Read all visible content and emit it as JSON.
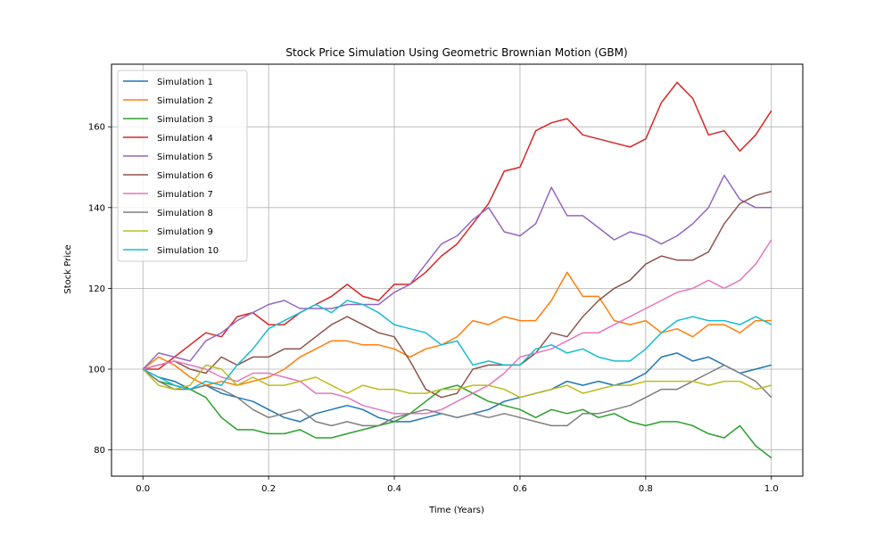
{
  "chart_data": {
    "type": "line",
    "title": "Stock Price Simulation Using Geometric Brownian Motion (GBM)",
    "xlabel": "Time (Years)",
    "ylabel": "Stock Price",
    "xlim": [
      -0.05,
      1.05
    ],
    "ylim": [
      73.5,
      175.5
    ],
    "xticks": [
      0.0,
      0.2,
      0.4,
      0.6,
      0.8,
      1.0
    ],
    "xtick_labels": [
      "0.0",
      "0.2",
      "0.4",
      "0.6",
      "0.8",
      "1.0"
    ],
    "yticks": [
      80,
      100,
      120,
      140,
      160
    ],
    "ytick_labels": [
      "80",
      "100",
      "120",
      "140",
      "160"
    ],
    "grid": true,
    "legend_position": "upper-left",
    "x": [
      0.0,
      0.025,
      0.05,
      0.075,
      0.1,
      0.125,
      0.15,
      0.175,
      0.2,
      0.225,
      0.25,
      0.275,
      0.3,
      0.325,
      0.35,
      0.375,
      0.4,
      0.425,
      0.45,
      0.475,
      0.5,
      0.525,
      0.55,
      0.575,
      0.6,
      0.625,
      0.65,
      0.675,
      0.7,
      0.725,
      0.75,
      0.775,
      0.8,
      0.825,
      0.85,
      0.875,
      0.9,
      0.925,
      0.95,
      0.975,
      1.0
    ],
    "series": [
      {
        "name": "Simulation 1",
        "color": "#1f77b4",
        "values": [
          100,
          98,
          97,
          95,
          96,
          94,
          93,
          92,
          90,
          88,
          87,
          89,
          90,
          91,
          90,
          88,
          87,
          87,
          88,
          89,
          88,
          89,
          90,
          92,
          93,
          94,
          95,
          97,
          96,
          97,
          96,
          97,
          99,
          103,
          104,
          102,
          103,
          101,
          99,
          100,
          101
        ]
      },
      {
        "name": "Simulation 2",
        "color": "#ff7f0e",
        "values": [
          100,
          103,
          101,
          98,
          96,
          97,
          96,
          97,
          98,
          100,
          103,
          105,
          107,
          107,
          106,
          106,
          105,
          103,
          105,
          106,
          108,
          112,
          111,
          113,
          112,
          112,
          117,
          124,
          118,
          118,
          112,
          111,
          112,
          109,
          110,
          108,
          111,
          111,
          109,
          112,
          112
        ]
      },
      {
        "name": "Simulation 3",
        "color": "#2ca02c",
        "values": [
          100,
          97,
          96,
          95,
          93,
          88,
          85,
          85,
          84,
          84,
          85,
          83,
          83,
          84,
          85,
          86,
          87,
          89,
          92,
          95,
          96,
          94,
          92,
          91,
          90,
          88,
          90,
          89,
          90,
          88,
          89,
          87,
          86,
          87,
          87,
          86,
          84,
          83,
          86,
          81,
          78
        ]
      },
      {
        "name": "Simulation 4",
        "color": "#d62728",
        "values": [
          100,
          100,
          103,
          106,
          109,
          108,
          113,
          114,
          111,
          111,
          114,
          116,
          118,
          121,
          118,
          117,
          121,
          121,
          124,
          128,
          131,
          136,
          141,
          149,
          150,
          159,
          161,
          162,
          158,
          157,
          156,
          155,
          157,
          166,
          171,
          167,
          158,
          159,
          154,
          158,
          164
        ]
      },
      {
        "name": "Simulation 5",
        "color": "#9467bd",
        "values": [
          100,
          104,
          103,
          102,
          107,
          109,
          112,
          114,
          116,
          117,
          115,
          115,
          115,
          116,
          116,
          116,
          119,
          121,
          126,
          131,
          133,
          137,
          140,
          134,
          133,
          136,
          145,
          138,
          138,
          135,
          132,
          134,
          133,
          131,
          133,
          136,
          140,
          148,
          142,
          140,
          140
        ]
      },
      {
        "name": "Simulation 6",
        "color": "#8c564b",
        "values": [
          100,
          101,
          102,
          100,
          99,
          103,
          101,
          103,
          103,
          105,
          105,
          108,
          111,
          113,
          111,
          109,
          108,
          102,
          95,
          93,
          94,
          100,
          101,
          101,
          101,
          104,
          109,
          108,
          113,
          117,
          120,
          122,
          126,
          128,
          127,
          127,
          129,
          136,
          141,
          143,
          144
        ]
      },
      {
        "name": "Simulation 7",
        "color": "#e377c2",
        "values": [
          100,
          101,
          102,
          101,
          100,
          98,
          97,
          99,
          99,
          98,
          97,
          94,
          94,
          93,
          91,
          90,
          89,
          89,
          89,
          90,
          92,
          94,
          96,
          99,
          103,
          104,
          105,
          107,
          109,
          109,
          111,
          113,
          115,
          117,
          119,
          120,
          122,
          120,
          122,
          126,
          132
        ]
      },
      {
        "name": "Simulation 8",
        "color": "#7f7f7f",
        "values": [
          100,
          97,
          95,
          95,
          96,
          95,
          93,
          90,
          88,
          89,
          90,
          87,
          86,
          87,
          86,
          86,
          88,
          89,
          90,
          89,
          88,
          89,
          88,
          89,
          88,
          87,
          86,
          86,
          89,
          89,
          90,
          91,
          93,
          95,
          95,
          97,
          99,
          101,
          99,
          97,
          93
        ]
      },
      {
        "name": "Simulation 9",
        "color": "#bcbd22",
        "values": [
          100,
          96,
          95,
          96,
          101,
          100,
          96,
          98,
          96,
          96,
          97,
          98,
          96,
          94,
          96,
          95,
          95,
          94,
          94,
          95,
          95,
          96,
          96,
          95,
          93,
          94,
          95,
          96,
          94,
          95,
          96,
          96,
          97,
          97,
          97,
          97,
          96,
          97,
          97,
          95,
          96
        ]
      },
      {
        "name": "Simulation 10",
        "color": "#17becf",
        "values": [
          100,
          98,
          96,
          95,
          97,
          96,
          101,
          105,
          110,
          112,
          114,
          116,
          114,
          117,
          116,
          114,
          111,
          110,
          109,
          106,
          107,
          101,
          102,
          101,
          101,
          105,
          106,
          104,
          105,
          103,
          102,
          102,
          105,
          109,
          112,
          113,
          112,
          112,
          111,
          113,
          111
        ]
      }
    ]
  }
}
